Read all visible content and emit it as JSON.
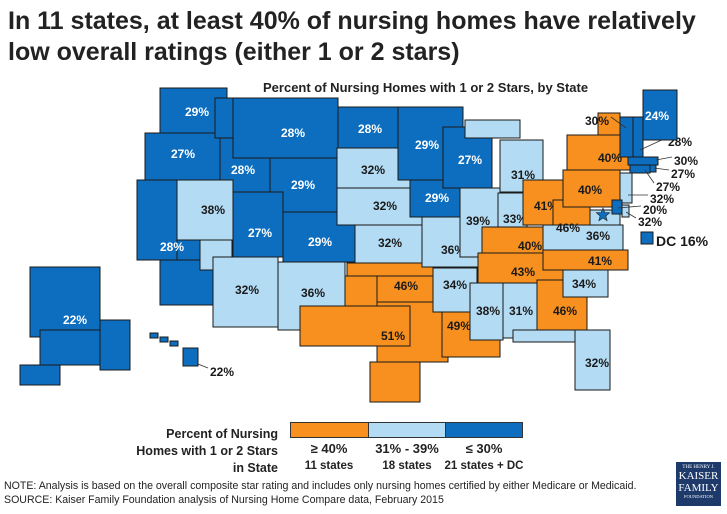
{
  "title": "In 11 states, at least 40% of nursing homes have relatively low overall ratings (either 1 or 2 stars)",
  "subtitle": "Percent of Nursing Homes with 1 or 2 Stars, by State",
  "colors": {
    "high": "#F7901E",
    "mid": "#B3DBF3",
    "low": "#0D6EBF",
    "border": "#1a1a1a"
  },
  "states": [
    {
      "state": "WA",
      "value": "29%",
      "class": "low"
    },
    {
      "state": "OR",
      "value": "27%",
      "class": "low"
    },
    {
      "state": "CA",
      "value": "28%",
      "class": "low"
    },
    {
      "state": "ID",
      "value": "28%",
      "class": "low"
    },
    {
      "state": "NV",
      "value": "38%",
      "class": "mid"
    },
    {
      "state": "MT",
      "value": "28%",
      "class": "low"
    },
    {
      "state": "WY",
      "value": "29%",
      "class": "low"
    },
    {
      "state": "UT",
      "value": "27%",
      "class": "low"
    },
    {
      "state": "AZ",
      "value": "32%",
      "class": "mid"
    },
    {
      "state": "CO",
      "value": "29%",
      "class": "low"
    },
    {
      "state": "NM",
      "value": "36%",
      "class": "mid"
    },
    {
      "state": "ND",
      "value": "28%",
      "class": "low"
    },
    {
      "state": "SD",
      "value": "32%",
      "class": "mid"
    },
    {
      "state": "NE",
      "value": "32%",
      "class": "mid"
    },
    {
      "state": "KS",
      "value": "32%",
      "class": "mid"
    },
    {
      "state": "OK",
      "value": "46%",
      "class": "high"
    },
    {
      "state": "TX",
      "value": "51%",
      "class": "high"
    },
    {
      "state": "MN",
      "value": "29%",
      "class": "low"
    },
    {
      "state": "IA",
      "value": "29%",
      "class": "low"
    },
    {
      "state": "MO",
      "value": "36%",
      "class": "mid"
    },
    {
      "state": "AR",
      "value": "34%",
      "class": "mid"
    },
    {
      "state": "LA",
      "value": "49%",
      "class": "high"
    },
    {
      "state": "WI",
      "value": "27%",
      "class": "low"
    },
    {
      "state": "IL",
      "value": "39%",
      "class": "mid"
    },
    {
      "state": "MI",
      "value": "31%",
      "class": "mid"
    },
    {
      "state": "IN",
      "value": "33%",
      "class": "mid"
    },
    {
      "state": "OH",
      "value": "41%",
      "class": "high"
    },
    {
      "state": "KY",
      "value": "40%",
      "class": "high"
    },
    {
      "state": "TN",
      "value": "43%",
      "class": "high"
    },
    {
      "state": "MS",
      "value": "38%",
      "class": "mid"
    },
    {
      "state": "AL",
      "value": "31%",
      "class": "mid"
    },
    {
      "state": "GA",
      "value": "46%",
      "class": "high"
    },
    {
      "state": "FL",
      "value": "32%",
      "class": "mid"
    },
    {
      "state": "SC",
      "value": "34%",
      "class": "mid"
    },
    {
      "state": "NC",
      "value": "41%",
      "class": "high"
    },
    {
      "state": "VA",
      "value": "36%",
      "class": "mid"
    },
    {
      "state": "WV",
      "value": "46%",
      "class": "high"
    },
    {
      "state": "PA",
      "value": "40%",
      "class": "high"
    },
    {
      "state": "NY",
      "value": "40%",
      "class": "high"
    },
    {
      "state": "VT",
      "value": "30%",
      "class": "low"
    },
    {
      "state": "NH",
      "value": "28%",
      "class": "low"
    },
    {
      "state": "ME",
      "value": "24%",
      "class": "low"
    },
    {
      "state": "MA",
      "value": "30%",
      "class": "low"
    },
    {
      "state": "RI",
      "value": "27%",
      "class": "low"
    },
    {
      "state": "CT",
      "value": "27%",
      "class": "low"
    },
    {
      "state": "NJ",
      "value": "32%",
      "class": "mid"
    },
    {
      "state": "DE",
      "value": "32%",
      "class": "mid"
    },
    {
      "state": "MD",
      "value": "20%",
      "class": "low"
    },
    {
      "state": "DC",
      "value": "DC 16%",
      "class": "low"
    },
    {
      "state": "AK",
      "value": "22%",
      "class": "low"
    },
    {
      "state": "HI",
      "value": "22%",
      "class": "low"
    }
  ],
  "legend": {
    "label": "Percent of Nursing Homes with 1 or 2 Stars in State",
    "items": [
      {
        "range": "≥ 40%",
        "count": "11 states",
        "class": "high"
      },
      {
        "range": "31% - 39%",
        "count": "18 states",
        "class": "mid"
      },
      {
        "range": "≤ 30%",
        "count": "21 states + DC",
        "class": "low"
      }
    ]
  },
  "note": "NOTE: Analysis is based on the overall composite star rating and includes only nursing homes certified by either Medicare or Medicaid.",
  "source": "SOURCE: Kaiser Family Foundation analysis of Nursing Home Compare data, February 2015",
  "logo": {
    "line1": "THE HENRY J.",
    "line2": "KAISER",
    "line3": "FAMILY",
    "line4": "FOUNDATION"
  }
}
